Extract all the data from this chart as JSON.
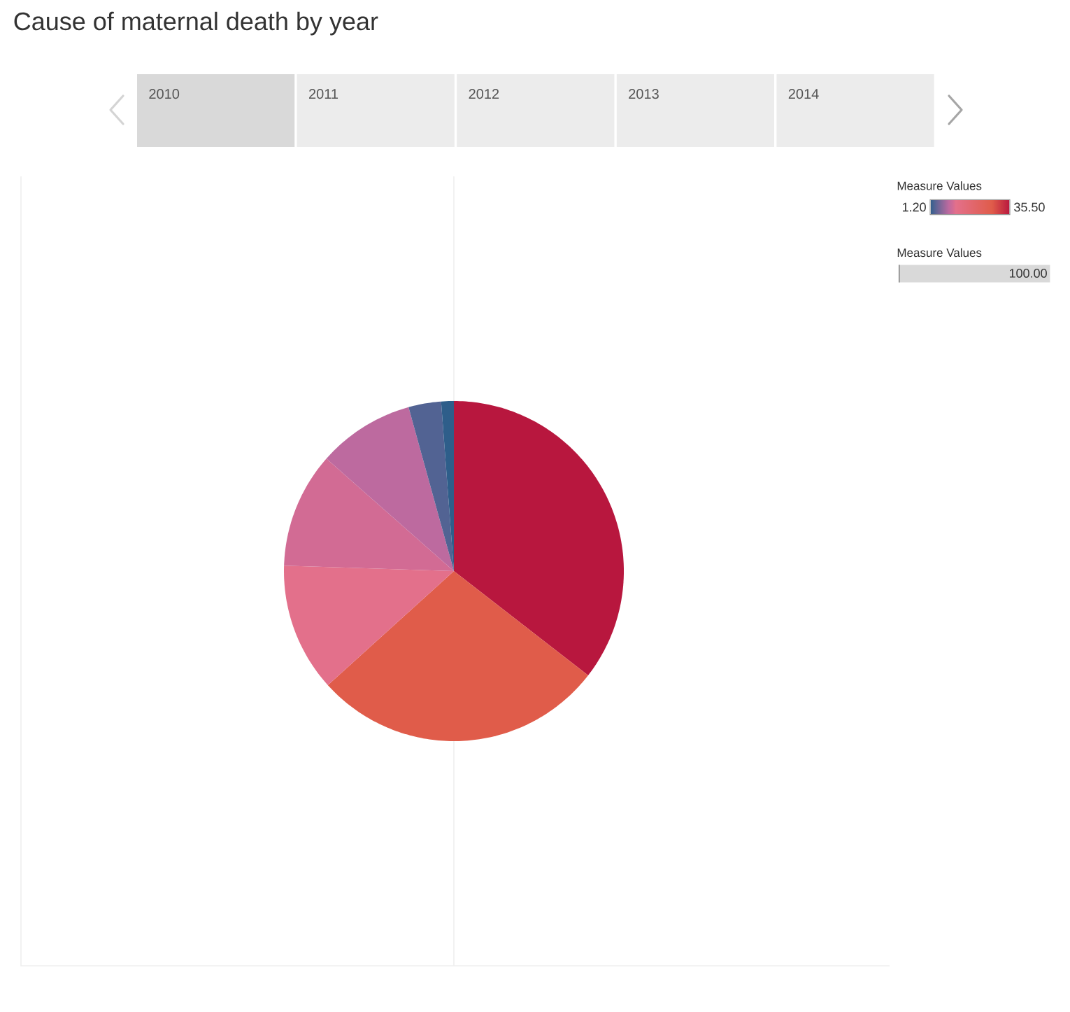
{
  "chart_data": {
    "type": "pie",
    "title": "Cause of maternal death by year",
    "categories": [
      null,
      null,
      null,
      null,
      null,
      null,
      null
    ],
    "values": [
      35.5,
      27.8,
      12.2,
      11.0,
      9.2,
      3.1,
      1.2
    ],
    "colors": [
      "#b8173e",
      "#e05c4a",
      "#e3708b",
      "#d26b94",
      "#bd6a9f",
      "#526393",
      "#2e5e8a"
    ],
    "clabel": "Measure Values",
    "legend_title": "Measure Values",
    "annotations": [
      "2010",
      "2011",
      "2012",
      "2013",
      "2014",
      "1.20",
      "35.50",
      "100.00"
    ]
  }
}
